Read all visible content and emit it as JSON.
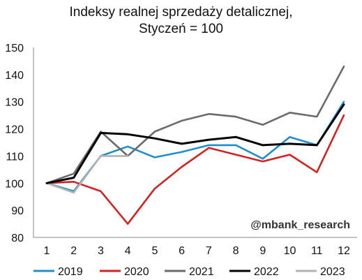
{
  "chart_data": {
    "type": "line",
    "title_line1": "Indeksy realnej sprzedaży detalicznej,",
    "title_line2": "Styczeń = 100",
    "categories": [
      "1",
      "2",
      "3",
      "4",
      "5",
      "6",
      "7",
      "8",
      "9",
      "10",
      "11",
      "12"
    ],
    "ylim": [
      80,
      150
    ],
    "yticks": [
      "80",
      "90",
      "100",
      "110",
      "120",
      "130",
      "140",
      "150"
    ],
    "grid": false,
    "legend_position": "bottom",
    "annotation": "@mbank_research",
    "series": [
      {
        "name": "2019",
        "color": "#1f8fc9",
        "values": [
          100,
          97,
          110,
          113.5,
          109.5,
          111.5,
          114,
          114,
          109,
          117,
          114,
          130
        ]
      },
      {
        "name": "2020",
        "color": "#d22222",
        "values": [
          100,
          100.5,
          97,
          85,
          98,
          106,
          113,
          110.5,
          108,
          110.5,
          104,
          125
        ]
      },
      {
        "name": "2021",
        "color": "#6b6b6b",
        "values": [
          100,
          103.5,
          119,
          110,
          119,
          123,
          125.5,
          124.5,
          121.5,
          126,
          124.5,
          143
        ]
      },
      {
        "name": "2022",
        "color": "#000000",
        "values": [
          100,
          102,
          118.5,
          118,
          116.5,
          114.5,
          116,
          117,
          114,
          114.5,
          114,
          129
        ]
      },
      {
        "name": "2023",
        "color": "#b3b3b3",
        "values": [
          100,
          96.5,
          110,
          110,
          null,
          null,
          null,
          null,
          null,
          null,
          null,
          null
        ]
      }
    ]
  }
}
